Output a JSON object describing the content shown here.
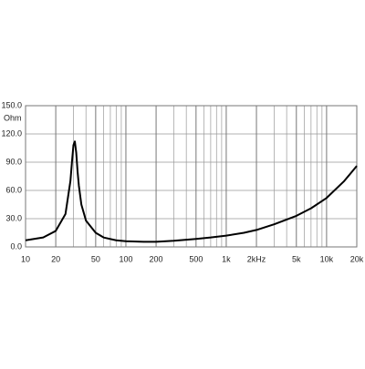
{
  "chart_data": {
    "type": "line",
    "y_unit": "Ohm",
    "x": [
      10,
      15,
      20,
      25,
      28,
      29,
      30,
      31,
      32,
      33,
      34,
      36,
      40,
      50,
      60,
      80,
      100,
      150,
      200,
      300,
      500,
      700,
      1000,
      1500,
      2000,
      3000,
      5000,
      7000,
      10000,
      15000,
      20000
    ],
    "series": [
      {
        "color": "#000000",
        "values": [
          7,
          10,
          17,
          35,
          70,
          90,
          108,
          112,
          100,
          80,
          65,
          45,
          28,
          15,
          10,
          7,
          6,
          5.5,
          5.5,
          6.5,
          8.5,
          10,
          12,
          15,
          18,
          24,
          33,
          41,
          52,
          70,
          86
        ]
      }
    ],
    "xscale": "log",
    "xlim": [
      10,
      20000
    ],
    "xticks": [
      10,
      20,
      50,
      100,
      200,
      500,
      {
        "value": 1000,
        "label": "1k"
      },
      {
        "value": 2000,
        "label": "2kHz"
      },
      {
        "value": 5000,
        "label": "5k"
      },
      {
        "value": 10000,
        "label": "10k"
      },
      {
        "value": 20000,
        "label": "20k"
      }
    ],
    "xminor": [
      30,
      40,
      60,
      70,
      80,
      90,
      300,
      400,
      600,
      700,
      800,
      900,
      3000,
      4000,
      6000,
      7000,
      8000,
      9000
    ],
    "ylim": [
      0,
      150
    ],
    "yticks": [
      {
        "value": 0,
        "label": "0.0"
      },
      {
        "value": 30,
        "label": "30.0"
      },
      {
        "value": 60,
        "label": "60.0"
      },
      {
        "value": 90,
        "label": "90.0"
      },
      {
        "value": 120,
        "label": "120.0"
      },
      {
        "value": 150,
        "label": "150.0"
      }
    ],
    "grid": true
  }
}
